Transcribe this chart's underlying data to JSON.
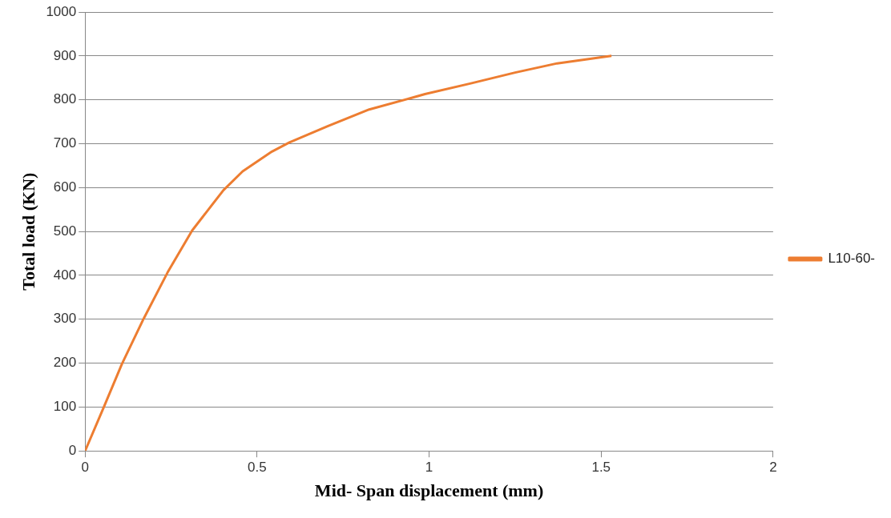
{
  "chart_data": {
    "type": "line",
    "xlabel": "Mid- Span displacement (mm)",
    "ylabel": "Total load (KN)",
    "xlim": [
      0,
      2
    ],
    "xticks": [
      0,
      0.5,
      1,
      1.5,
      2
    ],
    "ylim": [
      0,
      1000
    ],
    "yticks": [
      0,
      100,
      200,
      300,
      400,
      500,
      600,
      700,
      800,
      900,
      1000
    ],
    "grid": "y",
    "legend": "right",
    "marker": "none",
    "series": [
      {
        "name": "L10-60-",
        "color": "#ed7d31",
        "x": [
          0,
          0.054,
          0.107,
          0.17,
          0.24,
          0.311,
          0.402,
          0.458,
          0.543,
          0.594,
          0.705,
          0.826,
          0.947,
          0.988,
          1.119,
          1.25,
          1.372,
          1.53
        ],
        "values": [
          0,
          99,
          198,
          301,
          407,
          502,
          594,
          637,
          682,
          703,
          740,
          778,
          804,
          813,
          837,
          862,
          883,
          900
        ]
      }
    ]
  }
}
